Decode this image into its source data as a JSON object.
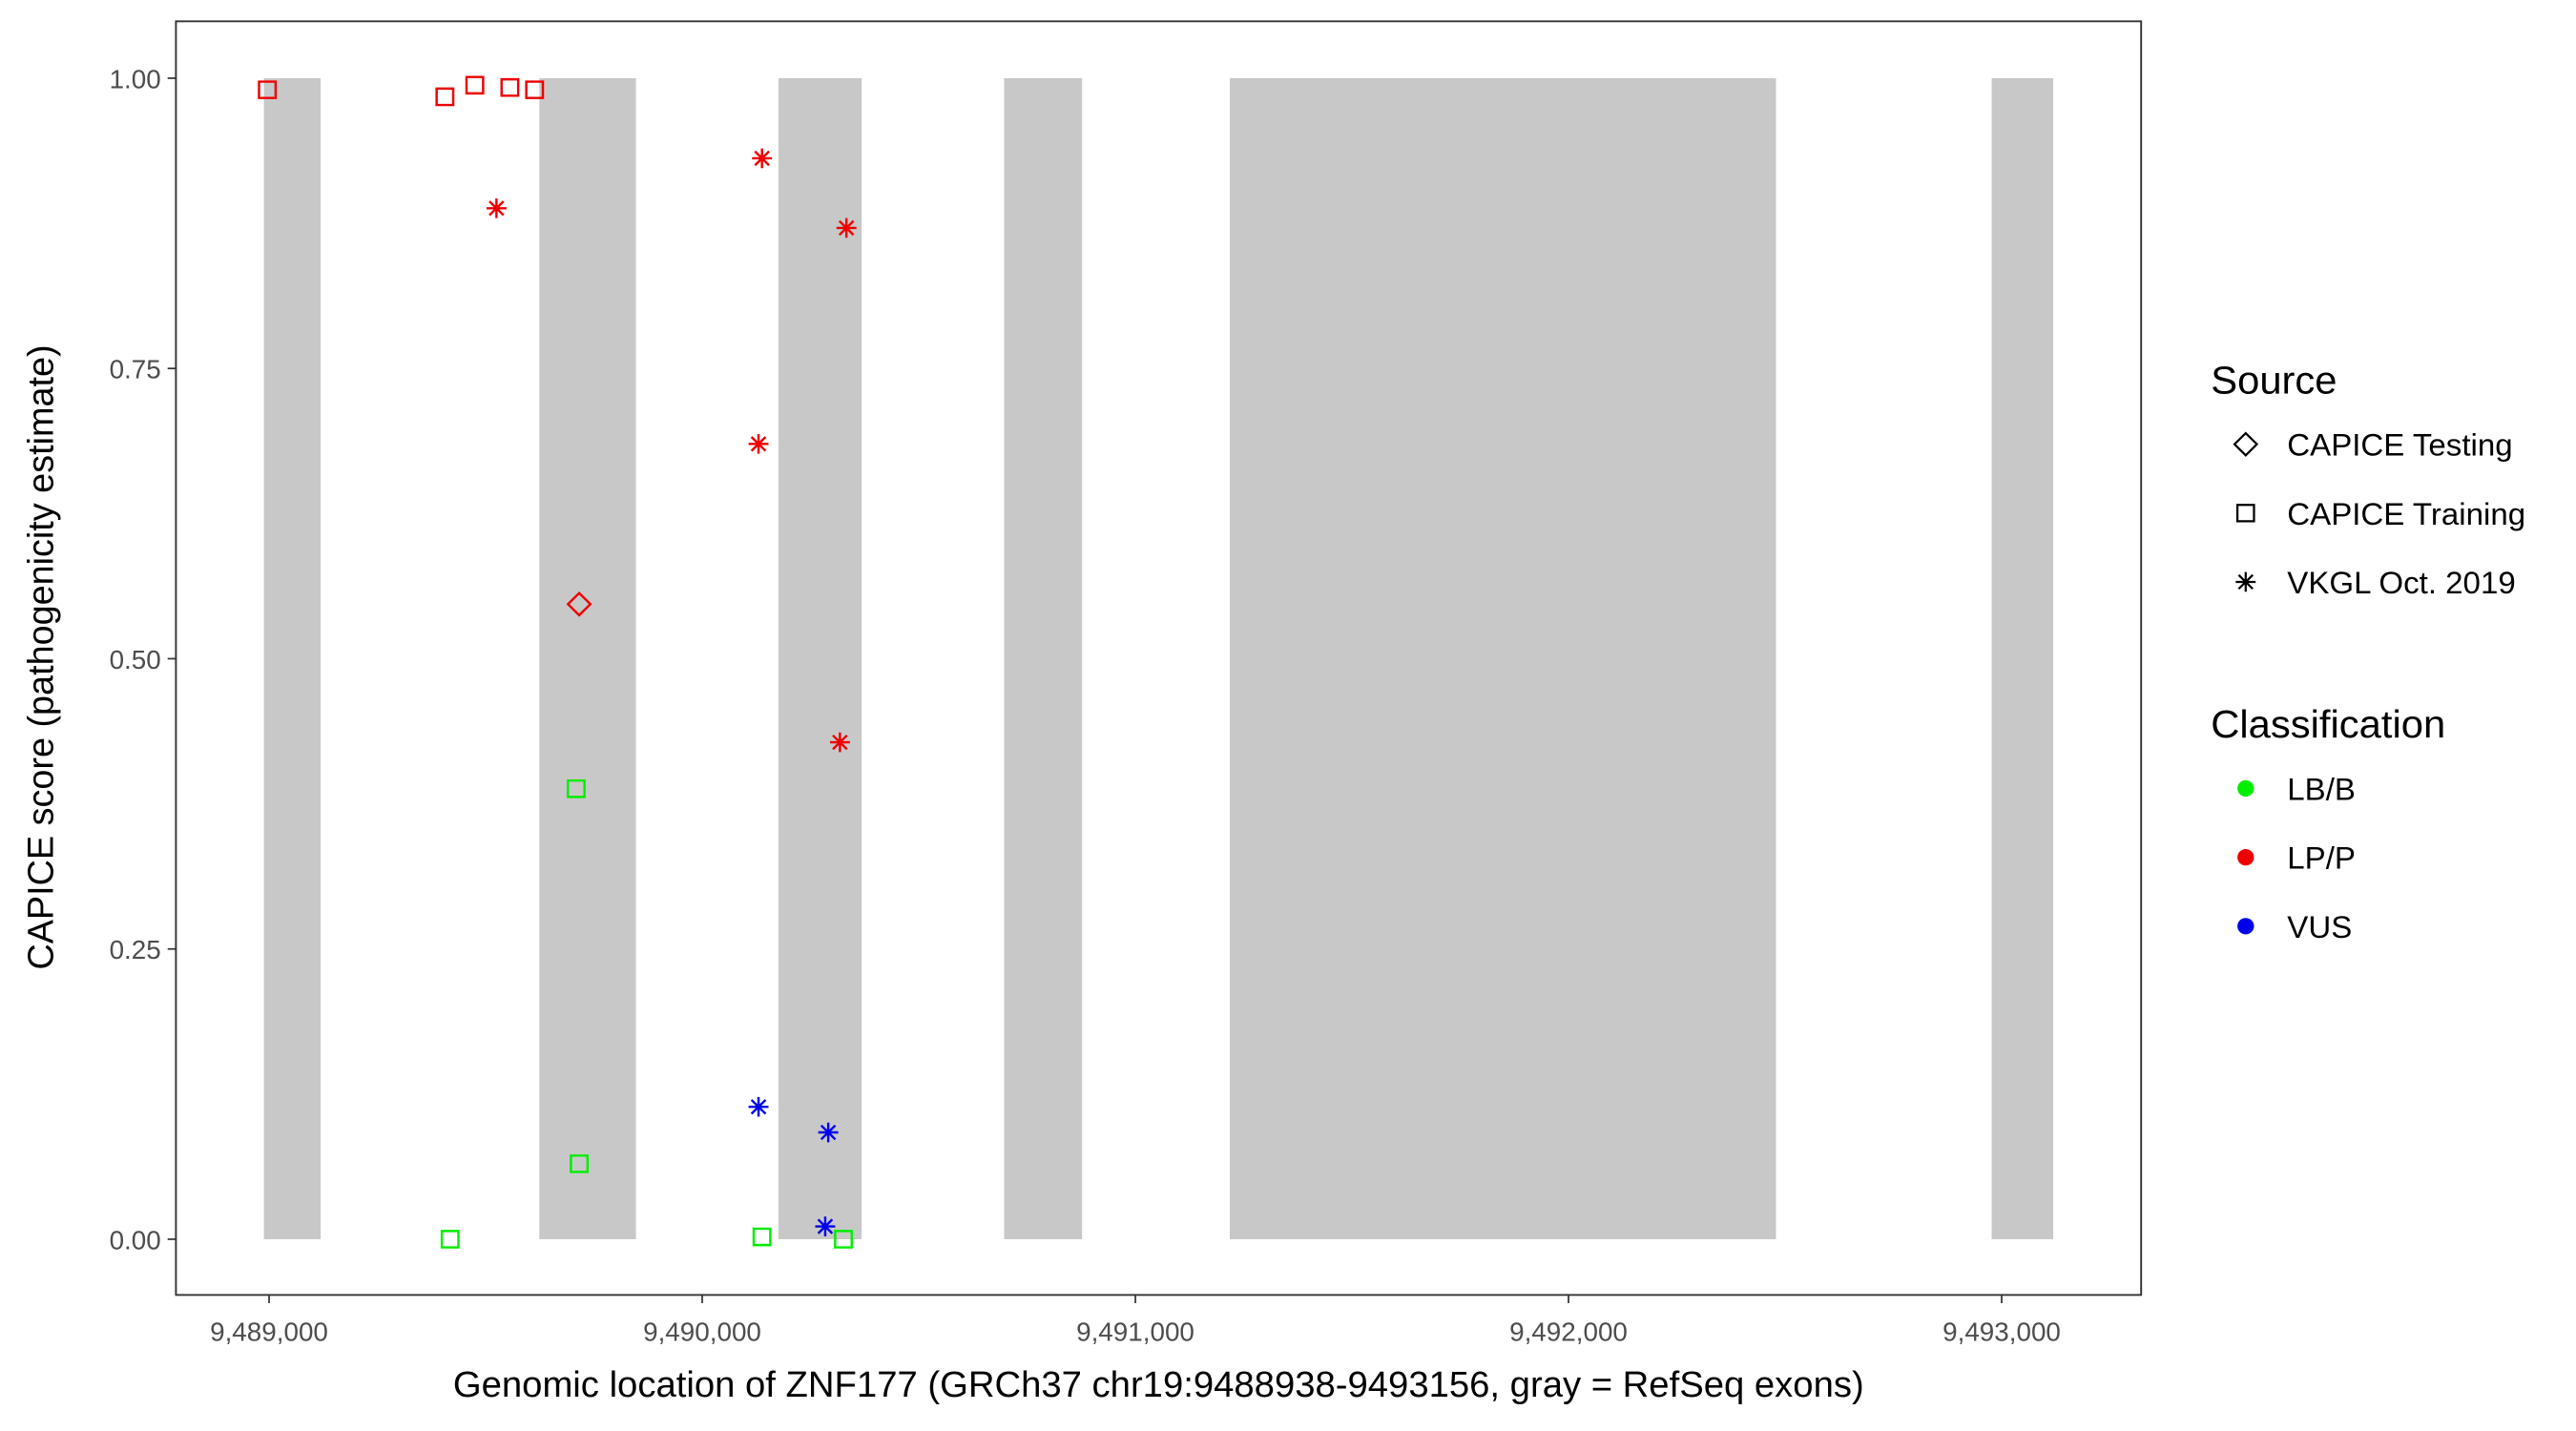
{
  "chart_data": {
    "type": "scatter",
    "x_label": "Genomic location of ZNF177 (GRCh37 chr19:9488938-9493156, gray = RefSeq exons)",
    "y_label": "CAPICE score (pathogenicity estimate)",
    "xlim": [
      9488785,
      9493322
    ],
    "ylim": [
      -0.048,
      1.049
    ],
    "xticks": [
      {
        "value": 9489000,
        "label": "9,489,000"
      },
      {
        "value": 9490000,
        "label": "9,490,000"
      },
      {
        "value": 9491000,
        "label": "9,491,000"
      },
      {
        "value": 9492000,
        "label": "9,492,000"
      },
      {
        "value": 9493000,
        "label": "9,493,000"
      }
    ],
    "yticks": [
      {
        "value": 0,
        "label": "0.00"
      },
      0.25,
      {
        "value": 0.5,
        "label": "0.50"
      },
      0.75,
      {
        "value": 1,
        "label": "1.00"
      }
    ],
    "exon_color": "#c8c8c8",
    "exons": [
      [
        9488988,
        9489119
      ],
      [
        9489624,
        9489847
      ],
      [
        9490176,
        9490368
      ],
      [
        9490697,
        9490877
      ],
      [
        9491218,
        9492479
      ],
      [
        9492977,
        9493119
      ]
    ],
    "shape_legend": {
      "title": "Source",
      "items": [
        {
          "name": "CAPICE Testing",
          "shape": "diamond"
        },
        {
          "name": "CAPICE Training",
          "shape": "square"
        },
        {
          "name": "VKGL Oct. 2019",
          "shape": "star"
        }
      ]
    },
    "color_legend": {
      "title": "Classification",
      "items": [
        {
          "name": "LB/B",
          "color": "#00ee00"
        },
        {
          "name": "LP/P",
          "color": "#ee0000"
        },
        {
          "name": "VUS",
          "color": "#0000ee"
        }
      ]
    },
    "series": [
      {
        "shape": "square",
        "color": "#ee0000",
        "x": [
          9488996,
          9489406,
          9489475,
          9489556,
          9489613
        ],
        "values": [
          0.99,
          0.984,
          0.994,
          0.992,
          0.99
        ]
      },
      {
        "shape": "star",
        "color": "#ee0000",
        "x": [
          9489525,
          9490138,
          9490333,
          9490130,
          9490318
        ],
        "values": [
          0.888,
          0.931,
          0.871,
          0.685,
          0.428
        ]
      },
      {
        "shape": "diamond",
        "color": "#ee0000",
        "x": [
          9489716
        ],
        "values": [
          0.547
        ]
      },
      {
        "shape": "square",
        "color": "#00ee00",
        "x": [
          9489709,
          9489716,
          9489418,
          9490138,
          9490326
        ],
        "values": [
          0.388,
          0.065,
          0.0,
          0.002,
          0.0
        ]
      },
      {
        "shape": "star",
        "color": "#0000ee",
        "x": [
          9490130,
          9490291,
          9490284
        ],
        "values": [
          0.114,
          0.092,
          0.011
        ]
      }
    ]
  }
}
